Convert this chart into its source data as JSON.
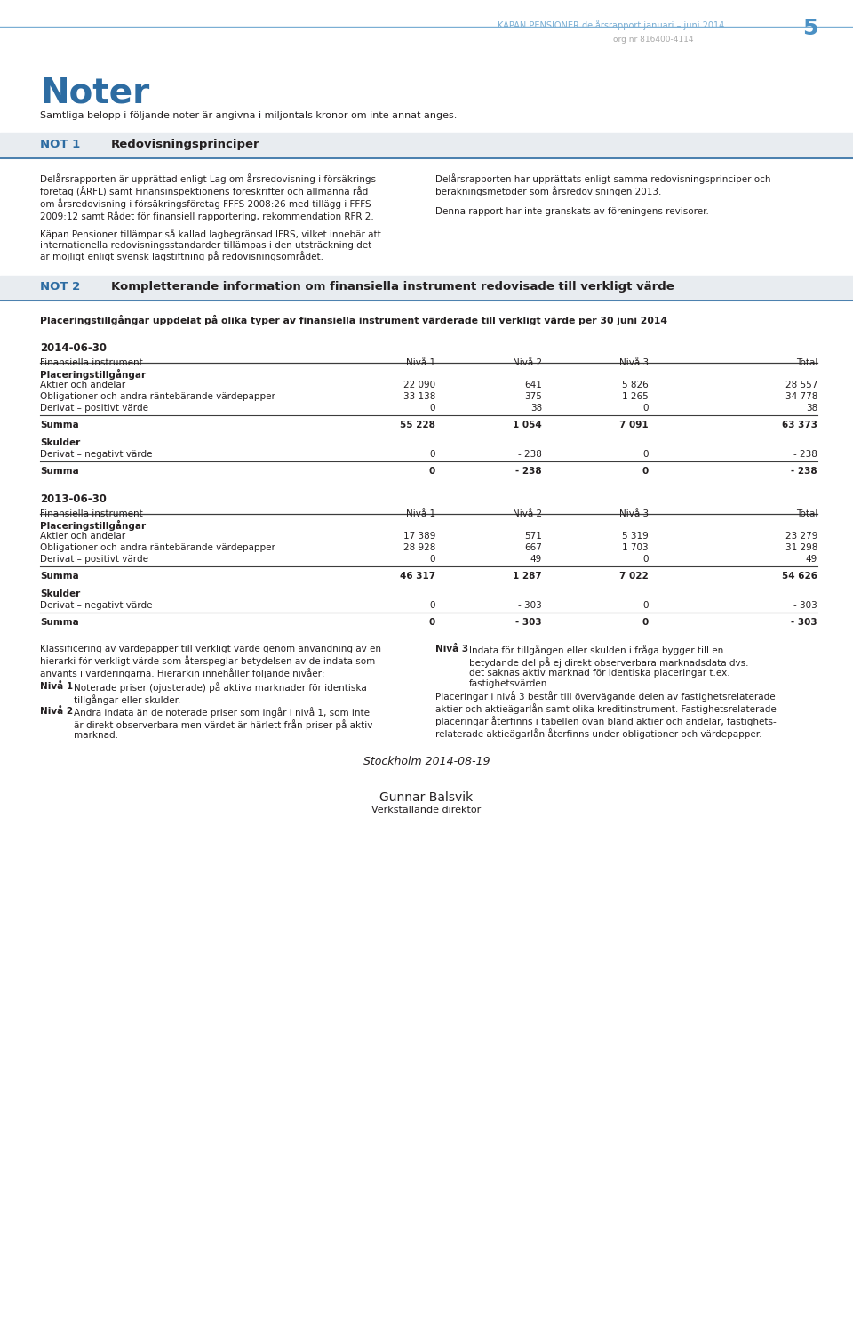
{
  "header_text": "KÄPAN PENSIONER delårsrapport januari – juni 2014",
  "header_number": "5",
  "org_nr": "org nr 816400-4114",
  "header_line_color": "#7bafd4",
  "noter_title": "Noter",
  "noter_subtitle": "Samtliga belopp i följande noter är angivna i miljontals kronor om inte annat anges.",
  "not1_color": "#2d6ca2",
  "not2_color": "#2d6ca2",
  "not1_bar_color": "#e8ecf0",
  "not2_bar_color": "#e8ecf0",
  "not1_left_para1": "Delårsrapporten är upprättad enligt Lag om årsredovisning i försäkrings-\nföretag (ÅRFL) samt Finansinspektionens föreskrifter och allmänna råd\nom årsredovisning i försäkringsföretag FFFS 2008:26 med tillägg i FFFS\n2009:12 samt Rådet för finansiell rapportering, rekommendation RFR 2.",
  "not1_left_para2": "Käpan Pensioner tillämpar så kallad lagbegränsad IFRS, vilket innebär att\ninternationella redovisningsstandarder tillämpas i den utsträckning det\när möjligt enligt svensk lagstiftning på redovisningsområdet.",
  "not1_right_para1": "Delårsrapporten har upprättats enligt samma redovisningsprinciper och\nberäkningsmetoder som årsredovisningen 2013.",
  "not1_right_para2": "Denna rapport har inte granskats av föreningens revisorer.",
  "subtitle_2014": "Placeringstillgångar uppdelat på olika typer av finansiella instrument värderade till verkligt värde per 30 juni 2014",
  "date_2014": "2014-06-30",
  "date_2013": "2013-06-30",
  "col_headers": [
    "Finansiella instrument",
    "Nivå 1",
    "Nivå 2",
    "Nivå 3",
    "Total"
  ],
  "table_2014_section1_header": "Placeringstillgångar",
  "table_2014_rows": [
    [
      "Aktier och andelar",
      "22 090",
      "641",
      "5 826",
      "28 557"
    ],
    [
      "Obligationer och andra räntebärande värdepapper",
      "33 138",
      "375",
      "1 265",
      "34 778"
    ],
    [
      "Derivat – positivt värde",
      "0",
      "38",
      "0",
      "38"
    ]
  ],
  "table_2014_summa": [
    "Summa",
    "55 228",
    "1 054",
    "7 091",
    "63 373"
  ],
  "table_2014_section2_header": "Skulder",
  "table_2014_skulder_rows": [
    [
      "Derivat – negativt värde",
      "0",
      "- 238",
      "0",
      "- 238"
    ]
  ],
  "table_2014_skulder_summa": [
    "Summa",
    "0",
    "- 238",
    "0",
    "- 238"
  ],
  "table_2013_section1_header": "Placeringstillgångar",
  "table_2013_rows": [
    [
      "Aktier och andelar",
      "17 389",
      "571",
      "5 319",
      "23 279"
    ],
    [
      "Obligationer och andra räntebärande värdepapper",
      "28 928",
      "667",
      "1 703",
      "31 298"
    ],
    [
      "Derivat – positivt värde",
      "0",
      "49",
      "0",
      "49"
    ]
  ],
  "table_2013_summa": [
    "Summa",
    "46 317",
    "1 287",
    "7 022",
    "54 626"
  ],
  "table_2013_section2_header": "Skulder",
  "table_2013_skulder_rows": [
    [
      "Derivat – negativt värde",
      "0",
      "- 303",
      "0",
      "- 303"
    ]
  ],
  "table_2013_skulder_summa": [
    "Summa",
    "0",
    "- 303",
    "0",
    "- 303"
  ],
  "footer_intro": "Klassificering av värdepapper till verkligt värde genom användning av en\nhierarki för verkligt värde som återspeglar betydelsen av de indata som\nanvänts i värderingarna. Hierarkin innehåller följande nivåer:",
  "niva1_bold": "Nivå 1",
  "niva1_text": "Noterade priser (ojusterade) på aktiva marknader för identiska\ntillgångar eller skulder.",
  "niva2_bold": "Nivå 2",
  "niva2_text": "Andra indata än de noterade priser som ingår i nivå 1, som inte\när direkt observerbara men värdet är härlett från priser på aktiv\nmarknad.",
  "niva3_bold": "Nivå 3",
  "niva3_text": "Indata för tillgången eller skulden i fråga bygger till en\nbetydande del på ej direkt observerbara marknadsdata dvs.\ndet saknas aktiv marknad för identiska placeringar t.ex.\nfastighetsvärden.",
  "footer_right_p2": "Placeringar i nivå 3 består till övervägande delen av fastighetsrelaterade\naktier och aktieägarlån samt olika kreditinstrument. Fastighetsrelaterade\nplaceringar återfinns i tabellen ovan bland aktier och andelar, fastighets-\nrelaterade aktieägarlån återfinns under obligationer och värdepapper.",
  "stockholm_text": "Stockholm 2014-08-19",
  "signatory": "Gunnar Balsvik",
  "signatory_title": "Verkställande direktör",
  "bg_color": "#ffffff",
  "text_color": "#231f20",
  "table_line_color": "#3c3c3c",
  "noter_color": "#2d6ca2"
}
